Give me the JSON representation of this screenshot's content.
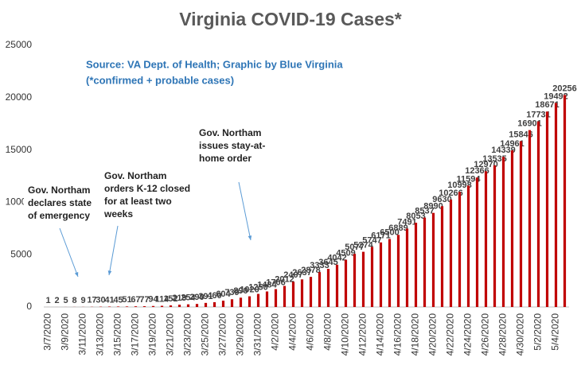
{
  "chart_data": {
    "type": "bar",
    "title": "Virginia COVID-19 Cases*",
    "subtitle": [
      "Source: VA Dept. of Health; Graphic by Blue Virginia",
      "(*confirmed + probable cases)"
    ],
    "categories": [
      "3/7/2020",
      null,
      "3/9/2020",
      null,
      "3/11/2020",
      null,
      "3/13/2020",
      null,
      "3/15/2020",
      null,
      "3/17/2020",
      null,
      "3/19/2020",
      null,
      "3/21/2020",
      null,
      "3/23/2020",
      null,
      "3/25/2020",
      null,
      "3/27/2020",
      null,
      "3/29/2020",
      null,
      "3/31/2020",
      null,
      "4/2/2020",
      null,
      "4/4/2020",
      null,
      "4/6/2020",
      null,
      "4/8/2020",
      null,
      "4/10/2020",
      null,
      "4/12/2020",
      null,
      "4/14/2020",
      null,
      "4/16/2020",
      null,
      "4/18/2020",
      null,
      "4/20/2020",
      null,
      "4/22/2020",
      null,
      "4/24/2020",
      null,
      "4/26/2020",
      null,
      "4/28/2020",
      null,
      "4/30/2020",
      null,
      "5/2/2020",
      null,
      "5/4/2020",
      null
    ],
    "values": [
      1,
      2,
      5,
      8,
      9,
      17,
      30,
      41,
      45,
      51,
      67,
      77,
      94,
      114,
      152,
      219,
      254,
      290,
      391,
      460,
      604,
      739,
      890,
      1020,
      1250,
      1484,
      1706,
      2012,
      2407,
      2637,
      2878,
      3333,
      3645,
      4042,
      4509,
      5077,
      5274,
      5747,
      6171,
      6500,
      6889,
      7491,
      8053,
      8537,
      8990,
      9630,
      10266,
      10998,
      11594,
      12366,
      12970,
      13535,
      14339,
      14961,
      15846,
      16901,
      17731,
      18671,
      19492,
      20256
    ],
    "color": "#c00000",
    "ylim": [
      0,
      25000
    ],
    "yticks": [
      0,
      5000,
      10000,
      15000,
      20000,
      25000
    ],
    "grid": false,
    "annotations": [
      {
        "text": [
          "Gov. Northam",
          "declares state",
          "of emergency"
        ]
      },
      {
        "text": [
          "Gov. Northam",
          "orders K-12 closed",
          "for at least two",
          "weeks"
        ]
      },
      {
        "text": [
          "Gov. Northam",
          "issues stay-at-",
          "home order"
        ]
      }
    ]
  }
}
